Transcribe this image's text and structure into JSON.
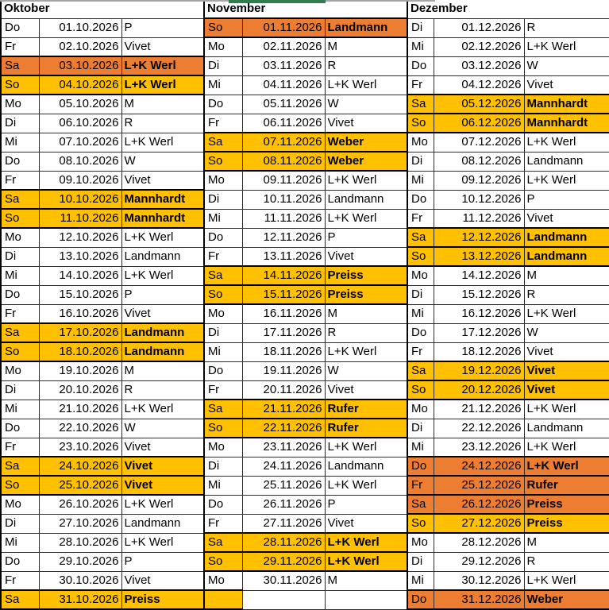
{
  "colors": {
    "weekend_highlight": "#FFC000",
    "holiday_highlight": "#ED7D31",
    "green_fragment": "#2F7D4F",
    "gridline": "#2e2e2e"
  },
  "months": [
    {
      "title": "Oktober",
      "days": [
        {
          "dow": "Do",
          "date": "01.10.2026",
          "name": "P",
          "hl": null
        },
        {
          "dow": "Fr",
          "date": "02.10.2026",
          "name": "Vivet",
          "hl": null
        },
        {
          "dow": "Sa",
          "date": "03.10.2026",
          "name": "L+K Werl",
          "hl": "orange"
        },
        {
          "dow": "So",
          "date": "04.10.2026",
          "name": "L+K Werl",
          "hl": "yellow"
        },
        {
          "dow": "Mo",
          "date": "05.10.2026",
          "name": "M",
          "hl": null
        },
        {
          "dow": "Di",
          "date": "06.10.2026",
          "name": "R",
          "hl": null
        },
        {
          "dow": "Mi",
          "date": "07.10.2026",
          "name": "L+K Werl",
          "hl": null
        },
        {
          "dow": "Do",
          "date": "08.10.2026",
          "name": "W",
          "hl": null
        },
        {
          "dow": "Fr",
          "date": "09.10.2026",
          "name": "Vivet",
          "hl": null
        },
        {
          "dow": "Sa",
          "date": "10.10.2026",
          "name": "Mannhardt",
          "hl": "yellow"
        },
        {
          "dow": "So",
          "date": "11.10.2026",
          "name": "Mannhardt",
          "hl": "yellow"
        },
        {
          "dow": "Mo",
          "date": "12.10.2026",
          "name": "L+K Werl",
          "hl": null
        },
        {
          "dow": "Di",
          "date": "13.10.2026",
          "name": "Landmann",
          "hl": null
        },
        {
          "dow": "Mi",
          "date": "14.10.2026",
          "name": "L+K Werl",
          "hl": null
        },
        {
          "dow": "Do",
          "date": "15.10.2026",
          "name": "P",
          "hl": null
        },
        {
          "dow": "Fr",
          "date": "16.10.2026",
          "name": "Vivet",
          "hl": null
        },
        {
          "dow": "Sa",
          "date": "17.10.2026",
          "name": "Landmann",
          "hl": "yellow"
        },
        {
          "dow": "So",
          "date": "18.10.2026",
          "name": "Landmann",
          "hl": "yellow"
        },
        {
          "dow": "Mo",
          "date": "19.10.2026",
          "name": "M",
          "hl": null
        },
        {
          "dow": "Di",
          "date": "20.10.2026",
          "name": "R",
          "hl": null
        },
        {
          "dow": "Mi",
          "date": "21.10.2026",
          "name": "L+K Werl",
          "hl": null
        },
        {
          "dow": "Do",
          "date": "22.10.2026",
          "name": "W",
          "hl": null
        },
        {
          "dow": "Fr",
          "date": "23.10.2026",
          "name": "Vivet",
          "hl": null
        },
        {
          "dow": "Sa",
          "date": "24.10.2026",
          "name": "Vivet",
          "hl": "yellow"
        },
        {
          "dow": "So",
          "date": "25.10.2026",
          "name": "Vivet",
          "hl": "yellow"
        },
        {
          "dow": "Mo",
          "date": "26.10.2026",
          "name": "L+K Werl",
          "hl": null
        },
        {
          "dow": "Di",
          "date": "27.10.2026",
          "name": "Landmann",
          "hl": null
        },
        {
          "dow": "Mi",
          "date": "28.10.2026",
          "name": "L+K Werl",
          "hl": null
        },
        {
          "dow": "Do",
          "date": "29.10.2026",
          "name": "P",
          "hl": null
        },
        {
          "dow": "Fr",
          "date": "30.10.2026",
          "name": "Vivet",
          "hl": null
        },
        {
          "dow": "Sa",
          "date": "31.10.2026",
          "name": "Preiss",
          "hl": "yellow"
        }
      ]
    },
    {
      "title": "November",
      "days": [
        {
          "dow": "So",
          "date": "01.11.2026",
          "name": "Landmann",
          "hl": "orange"
        },
        {
          "dow": "Mo",
          "date": "02.11.2026",
          "name": "M",
          "hl": null
        },
        {
          "dow": "Di",
          "date": "03.11.2026",
          "name": "R",
          "hl": null
        },
        {
          "dow": "Mi",
          "date": "04.11.2026",
          "name": "L+K Werl",
          "hl": null
        },
        {
          "dow": "Do",
          "date": "05.11.2026",
          "name": "W",
          "hl": null
        },
        {
          "dow": "Fr",
          "date": "06.11.2026",
          "name": "Vivet",
          "hl": null
        },
        {
          "dow": "Sa",
          "date": "07.11.2026",
          "name": "Weber",
          "hl": "yellow"
        },
        {
          "dow": "So",
          "date": "08.11.2026",
          "name": "Weber",
          "hl": "yellow"
        },
        {
          "dow": "Mo",
          "date": "09.11.2026",
          "name": "L+K Werl",
          "hl": null
        },
        {
          "dow": "Di",
          "date": "10.11.2026",
          "name": "Landmann",
          "hl": null
        },
        {
          "dow": "Mi",
          "date": "11.11.2026",
          "name": "L+K Werl",
          "hl": null
        },
        {
          "dow": "Do",
          "date": "12.11.2026",
          "name": "P",
          "hl": null
        },
        {
          "dow": "Fr",
          "date": "13.11.2026",
          "name": "Vivet",
          "hl": null
        },
        {
          "dow": "Sa",
          "date": "14.11.2026",
          "name": "Preiss",
          "hl": "yellow"
        },
        {
          "dow": "So",
          "date": "15.11.2026",
          "name": "Preiss",
          "hl": "yellow"
        },
        {
          "dow": "Mo",
          "date": "16.11.2026",
          "name": "M",
          "hl": null
        },
        {
          "dow": "Di",
          "date": "17.11.2026",
          "name": "R",
          "hl": null
        },
        {
          "dow": "Mi",
          "date": "18.11.2026",
          "name": "L+K Werl",
          "hl": null
        },
        {
          "dow": "Do",
          "date": "19.11.2026",
          "name": "W",
          "hl": null
        },
        {
          "dow": "Fr",
          "date": "20.11.2026",
          "name": "Vivet",
          "hl": null
        },
        {
          "dow": "Sa",
          "date": "21.11.2026",
          "name": "Rufer",
          "hl": "yellow"
        },
        {
          "dow": "So",
          "date": "22.11.2026",
          "name": "Rufer",
          "hl": "yellow"
        },
        {
          "dow": "Mo",
          "date": "23.11.2026",
          "name": "L+K Werl",
          "hl": null
        },
        {
          "dow": "Di",
          "date": "24.11.2026",
          "name": "Landmann",
          "hl": null
        },
        {
          "dow": "Mi",
          "date": "25.11.2026",
          "name": "L+K Werl",
          "hl": null
        },
        {
          "dow": "Do",
          "date": "26.11.2026",
          "name": "P",
          "hl": null
        },
        {
          "dow": "Fr",
          "date": "27.11.2026",
          "name": "Vivet",
          "hl": null
        },
        {
          "dow": "Sa",
          "date": "28.11.2026",
          "name": "L+K Werl",
          "hl": "yellow"
        },
        {
          "dow": "So",
          "date": "29.11.2026",
          "name": "L+K Werl",
          "hl": "yellow"
        },
        {
          "dow": "Mo",
          "date": "30.11.2026",
          "name": "M",
          "hl": null
        },
        {
          "dow": "",
          "date": "",
          "name": "",
          "hl": "daycell-yellow"
        }
      ]
    },
    {
      "title": "Dezember",
      "days": [
        {
          "dow": "Di",
          "date": "01.12.2026",
          "name": "R",
          "hl": null
        },
        {
          "dow": "Mi",
          "date": "02.12.2026",
          "name": "L+K Werl",
          "hl": null
        },
        {
          "dow": "Do",
          "date": "03.12.2026",
          "name": "W",
          "hl": null
        },
        {
          "dow": "Fr",
          "date": "04.12.2026",
          "name": "Vivet",
          "hl": null
        },
        {
          "dow": "Sa",
          "date": "05.12.2026",
          "name": "Mannhardt",
          "hl": "yellow"
        },
        {
          "dow": "So",
          "date": "06.12.2026",
          "name": "Mannhardt",
          "hl": "yellow"
        },
        {
          "dow": "Mo",
          "date": "07.12.2026",
          "name": "L+K Werl",
          "hl": null
        },
        {
          "dow": "Di",
          "date": "08.12.2026",
          "name": "Landmann",
          "hl": null
        },
        {
          "dow": "Mi",
          "date": "09.12.2026",
          "name": "L+K Werl",
          "hl": null
        },
        {
          "dow": "Do",
          "date": "10.12.2026",
          "name": "P",
          "hl": null
        },
        {
          "dow": "Fr",
          "date": "11.12.2026",
          "name": "Vivet",
          "hl": null
        },
        {
          "dow": "Sa",
          "date": "12.12.2026",
          "name": "Landmann",
          "hl": "yellow"
        },
        {
          "dow": "So",
          "date": "13.12.2026",
          "name": "Landmann",
          "hl": "yellow"
        },
        {
          "dow": "Mo",
          "date": "14.12.2026",
          "name": "M",
          "hl": null
        },
        {
          "dow": "Di",
          "date": "15.12.2026",
          "name": "R",
          "hl": null
        },
        {
          "dow": "Mi",
          "date": "16.12.2026",
          "name": "L+K Werl",
          "hl": null
        },
        {
          "dow": "Do",
          "date": "17.12.2026",
          "name": "W",
          "hl": null
        },
        {
          "dow": "Fr",
          "date": "18.12.2026",
          "name": "Vivet",
          "hl": null
        },
        {
          "dow": "Sa",
          "date": "19.12.2026",
          "name": "Vivet",
          "hl": "yellow"
        },
        {
          "dow": "So",
          "date": "20.12.2026",
          "name": "Vivet",
          "hl": "yellow"
        },
        {
          "dow": "Mo",
          "date": "21.12.2026",
          "name": "L+K Werl",
          "hl": null
        },
        {
          "dow": "Di",
          "date": "22.12.2026",
          "name": "Landmann",
          "hl": null
        },
        {
          "dow": "Mi",
          "date": "23.12.2026",
          "name": "L+K Werl",
          "hl": null
        },
        {
          "dow": "Do",
          "date": "24.12.2026",
          "name": "L+K Werl",
          "hl": "orange"
        },
        {
          "dow": "Fr",
          "date": "25.12.2026",
          "name": "Rufer",
          "hl": "orange"
        },
        {
          "dow": "Sa",
          "date": "26.12.2026",
          "name": "Preiss",
          "hl": "orange"
        },
        {
          "dow": "So",
          "date": "27.12.2026",
          "name": "Preiss",
          "hl": "yellow"
        },
        {
          "dow": "Mo",
          "date": "28.12.2026",
          "name": "M",
          "hl": null
        },
        {
          "dow": "Di",
          "date": "29.12.2026",
          "name": "R",
          "hl": null
        },
        {
          "dow": "Mi",
          "date": "30.12.2026",
          "name": "L+K Werl",
          "hl": null
        },
        {
          "dow": "Do",
          "date": "31.12.2026",
          "name": "Weber",
          "hl": "orange"
        }
      ]
    }
  ]
}
